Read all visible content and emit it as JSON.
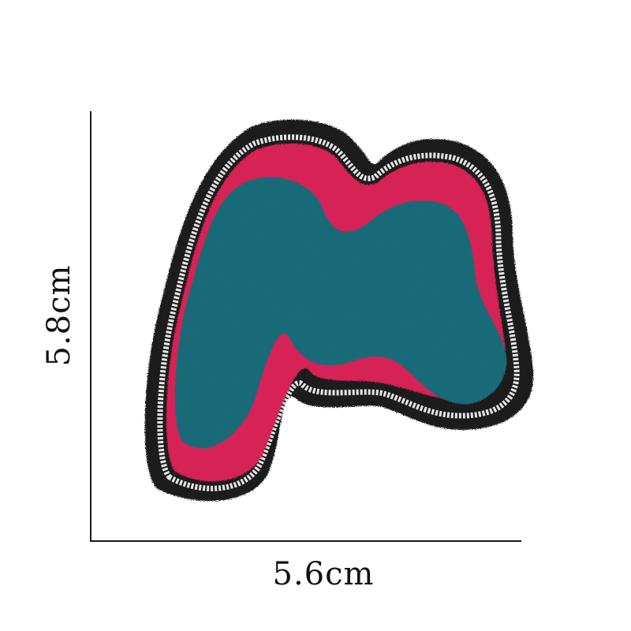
{
  "image": {
    "subject": "chenille-letter-patch",
    "colors": {
      "border": "#1b1b1d",
      "stitch": "#e6e6e6",
      "pink": "#d62456",
      "teal": "#1e6e7c",
      "axis": "#1a1a1a"
    }
  },
  "dimensions": {
    "width_label": "5.6cm",
    "height_label": "5.8cm"
  }
}
